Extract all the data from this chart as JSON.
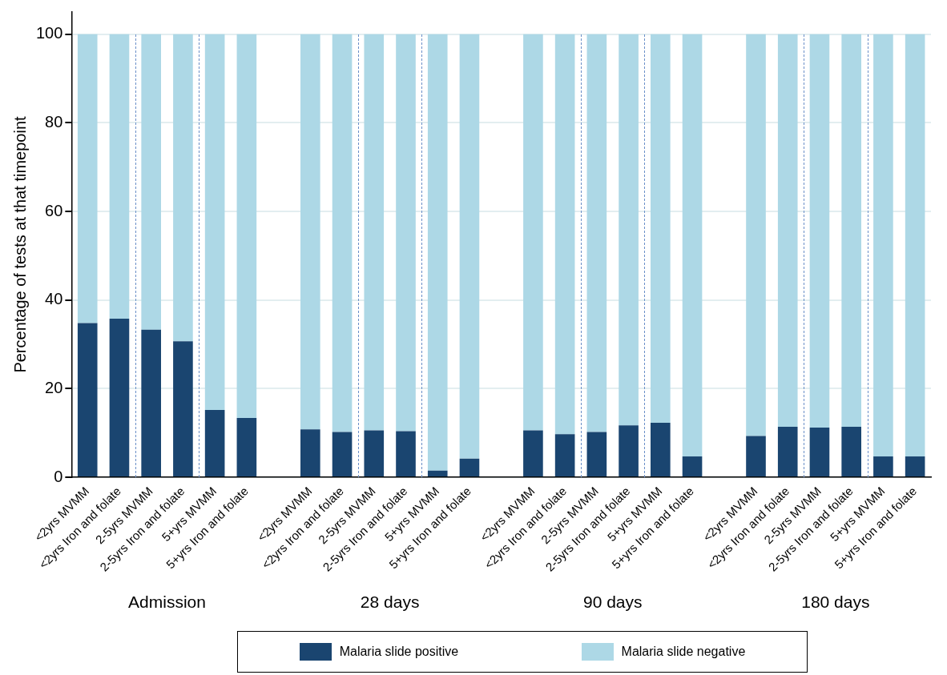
{
  "chart_data": {
    "type": "bar",
    "stacked": true,
    "ylabel": "Percentage of tests at that timepoint",
    "categories": [
      "<2yrs MVMM",
      "<2yrs Iron and folate",
      "2-5yrs MVMM",
      "2-5yrs Iron and folate",
      "5+yrs MVMM",
      "5+yrs Iron and folate",
      null,
      "<2yrs MVMM",
      "<2yrs Iron and folate",
      "2-5yrs MVMM",
      "2-5yrs Iron and folate",
      "5+yrs MVMM",
      "5+yrs Iron and folate",
      null,
      "<2yrs MVMM",
      "<2yrs Iron and folate",
      "2-5yrs MVMM",
      "2-5yrs Iron and folate",
      "5+yrs MVMM",
      "5+yrs Iron and folate",
      null,
      "<2yrs MVMM",
      "<2yrs Iron and folate",
      "2-5yrs MVMM",
      "2-5yrs Iron and folate",
      "5+yrs MVMM",
      "5+yrs Iron and folate"
    ],
    "series": [
      {
        "name": "Malaria slide positive",
        "color": "#1a4570",
        "values": [
          34.8,
          35.8,
          33.3,
          30.7,
          15.2,
          13.4,
          null,
          10.8,
          10.2,
          10.6,
          10.4,
          1.5,
          4.2,
          null,
          10.6,
          9.7,
          10.2,
          11.7,
          12.3,
          4.7,
          null,
          9.3,
          11.4,
          11.2,
          11.4,
          4.7,
          4.7
        ]
      },
      {
        "name": "Malaria slide negative",
        "color": "#add8e6",
        "values": [
          65.2,
          64.2,
          66.7,
          69.3,
          84.8,
          86.6,
          null,
          89.2,
          89.8,
          89.4,
          89.6,
          98.5,
          95.8,
          null,
          89.4,
          90.3,
          89.8,
          88.3,
          87.7,
          95.3,
          null,
          90.7,
          88.6,
          88.8,
          88.6,
          95.3,
          95.3
        ]
      }
    ],
    "annotations": [
      "Admission",
      "28 days",
      "90 days",
      "180 days"
    ],
    "ylim": [
      0,
      105
    ],
    "yticks": [
      0,
      20,
      40,
      60,
      80,
      100
    ],
    "grid": "y",
    "legend": "bottom"
  }
}
